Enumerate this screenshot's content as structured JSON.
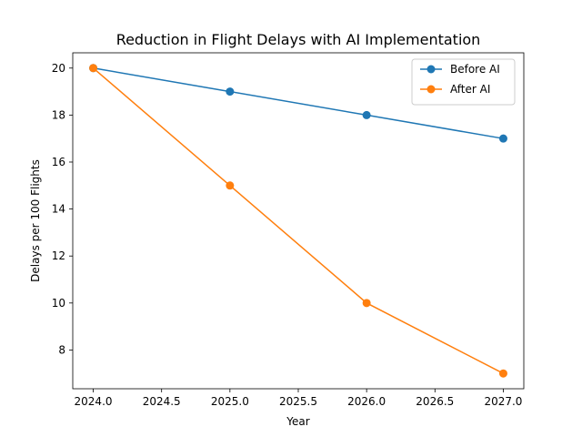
{
  "chart_data": {
    "type": "line",
    "title": "Reduction in Flight Delays with AI Implementation",
    "xlabel": "Year",
    "ylabel": "Delays per 100 Flights",
    "xlim": [
      2023.85,
      2027.15
    ],
    "ylim": [
      6.35,
      20.65
    ],
    "xticks": [
      2024.0,
      2024.5,
      2025.0,
      2025.5,
      2026.0,
      2026.5,
      2027.0
    ],
    "xtick_labels": [
      "2024.0",
      "2024.5",
      "2025.0",
      "2025.5",
      "2026.0",
      "2026.5",
      "2027.0"
    ],
    "yticks": [
      8,
      10,
      12,
      14,
      16,
      18,
      20
    ],
    "ytick_labels": [
      "8",
      "10",
      "12",
      "14",
      "16",
      "18",
      "20"
    ],
    "grid": false,
    "legend_position": "top-right",
    "x": [
      2024,
      2025,
      2026,
      2027
    ],
    "series": [
      {
        "name": "Before AI",
        "color": "#1f77b4",
        "marker": "circle",
        "values": [
          20,
          19,
          18,
          17
        ]
      },
      {
        "name": "After AI",
        "color": "#ff7f0e",
        "marker": "circle",
        "values": [
          20,
          15,
          10,
          7
        ]
      }
    ]
  }
}
